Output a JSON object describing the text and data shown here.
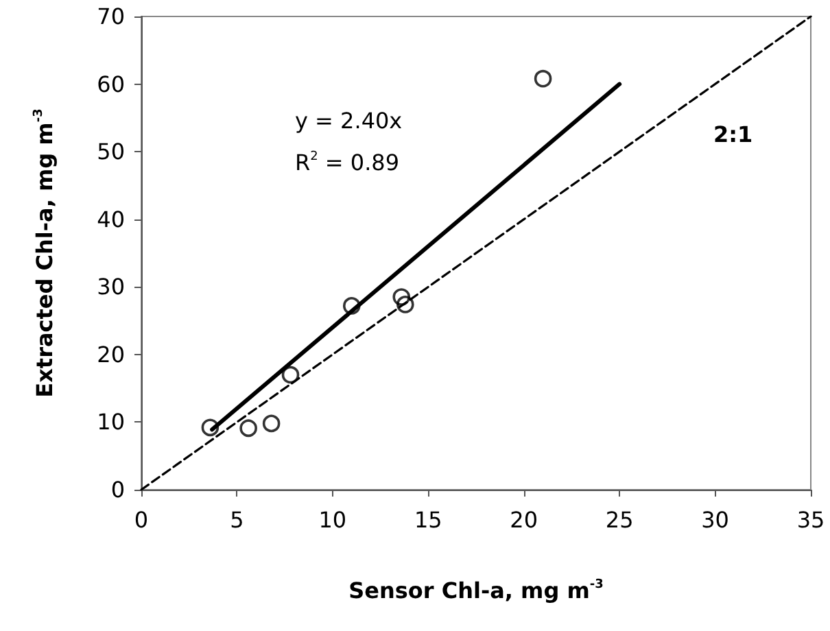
{
  "chart_data": {
    "type": "scatter",
    "xlabel": "Sensor Chl-a, mg m$^{-3}$",
    "ylabel": "Extracted Chl-a, mg m$^{-3}$",
    "annotations": [
      "y = 2.40x",
      "R$^{2}$ = 0.89",
      "2:1"
    ],
    "series": [
      {
        "color": "#000000",
        "marker": "circle",
        "x": [
          3.6,
          5.6,
          6.8,
          7.8,
          11,
          13.6,
          13.8,
          21
        ],
        "values": [
          9.2,
          9.1,
          9.8,
          17,
          27.2,
          28.5,
          27.4,
          60.8
        ]
      },
      {
        "type": "line",
        "color": "#000000",
        "line_style": "solid",
        "x": [
          3.7,
          25
        ],
        "values": [
          8.9,
          60
        ]
      },
      {
        "type": "line",
        "color": "#000000",
        "line_style": "dashed",
        "x": [
          0,
          35
        ],
        "values": [
          0,
          70
        ]
      }
    ],
    "xlim": [
      0,
      35
    ],
    "xticks": [
      0,
      5,
      10,
      15,
      20,
      25,
      30,
      35
    ],
    "ylim": [
      0,
      70
    ],
    "yticks": [
      0,
      10,
      20,
      30,
      40,
      50,
      60,
      70
    ],
    "grid": false
  }
}
